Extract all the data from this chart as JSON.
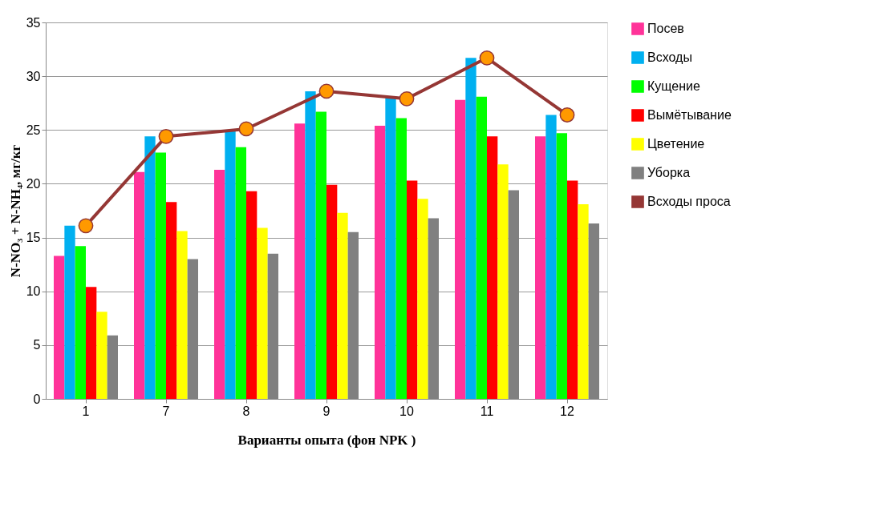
{
  "chart_data": {
    "type": "bar",
    "xlabel": "Варианты опыта (фон NPK )",
    "ylabel": "N-NO₃ + N-NH₄, мг/кг",
    "categories": [
      "1",
      "7",
      "8",
      "9",
      "10",
      "11",
      "12"
    ],
    "ylim": [
      0,
      35
    ],
    "yticks": [
      0,
      5,
      10,
      15,
      20,
      25,
      30,
      35
    ],
    "grid": "y",
    "legend": "right",
    "series": [
      {
        "name": "Посев",
        "color": "#ff3399",
        "values": [
          13.3,
          21.1,
          21.3,
          25.6,
          25.4,
          27.8,
          24.4
        ]
      },
      {
        "name": "Всходы",
        "color": "#00b0f0",
        "values": [
          16.1,
          24.4,
          25.0,
          28.6,
          28.0,
          31.7,
          26.4
        ]
      },
      {
        "name": "Кущение",
        "color": "#00ff00",
        "values": [
          14.2,
          22.9,
          23.4,
          26.7,
          26.1,
          28.1,
          24.7
        ]
      },
      {
        "name": "Вымётывание",
        "color": "#ff0000",
        "values": [
          10.4,
          18.3,
          19.3,
          19.9,
          20.3,
          24.4,
          20.3
        ]
      },
      {
        "name": "Цветение",
        "color": "#ffff00",
        "values": [
          8.1,
          15.6,
          15.9,
          17.3,
          18.6,
          21.8,
          18.1
        ]
      },
      {
        "name": "Уборка",
        "color": "#808080",
        "values": [
          5.9,
          13.0,
          13.5,
          15.5,
          16.8,
          19.4,
          16.3
        ]
      },
      {
        "name": "Всходы проса",
        "type": "line",
        "color": "#953735",
        "marker": "circle",
        "values": [
          16.1,
          24.4,
          25.1,
          28.6,
          27.9,
          31.7,
          26.4
        ]
      }
    ]
  }
}
